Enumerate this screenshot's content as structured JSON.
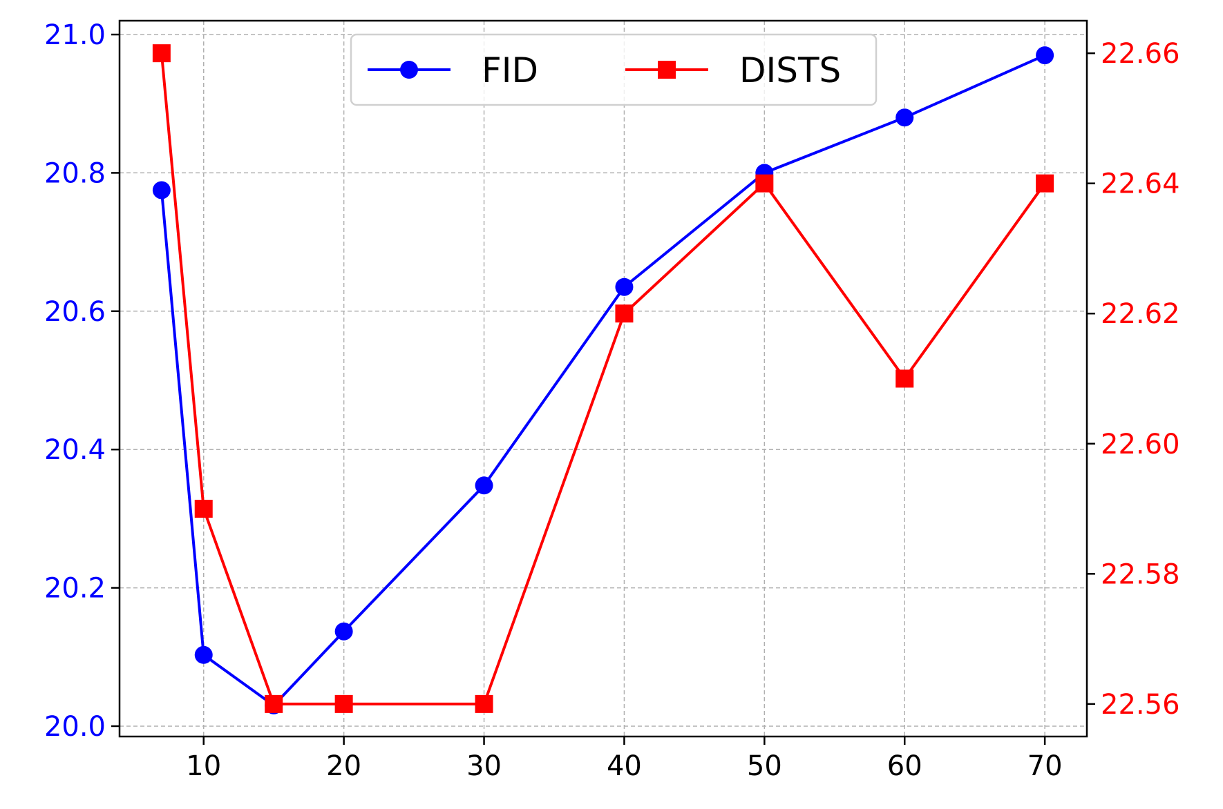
{
  "chart_data": {
    "type": "line",
    "title": "",
    "xlabel": "",
    "xlim": [
      4,
      73
    ],
    "x_ticks": [
      10,
      20,
      30,
      40,
      50,
      60,
      70
    ],
    "grid": true,
    "legend_placement": "top-center",
    "left_axis": {
      "label": "",
      "ylim": [
        19.985,
        21.02
      ],
      "ticks": [
        20.0,
        20.2,
        20.4,
        20.6,
        20.8,
        21.0
      ],
      "tick_labels": [
        "20.0",
        "20.2",
        "20.4",
        "20.6",
        "20.8",
        "21.0"
      ],
      "color": "#0000ff"
    },
    "right_axis": {
      "label": "",
      "ylim": [
        22.555,
        22.665
      ],
      "ticks": [
        22.56,
        22.58,
        22.6,
        22.62,
        22.64,
        22.66
      ],
      "tick_labels": [
        "22.56",
        "22.58",
        "22.60",
        "22.62",
        "22.64",
        "22.66"
      ],
      "color": "#ff0000"
    },
    "x": [
      7,
      10,
      15,
      20,
      30,
      40,
      50,
      60,
      70
    ],
    "series": [
      {
        "name": "FID",
        "axis": "left",
        "color": "#0000ff",
        "marker": "circle",
        "values": [
          20.775,
          20.103,
          20.03,
          20.137,
          20.348,
          20.635,
          20.8,
          20.88,
          20.97
        ]
      },
      {
        "name": "DISTS",
        "axis": "right",
        "color": "#ff0000",
        "marker": "square",
        "values": [
          22.66,
          22.59,
          22.56,
          22.56,
          22.56,
          22.62,
          22.64,
          22.61,
          22.64
        ]
      }
    ]
  }
}
